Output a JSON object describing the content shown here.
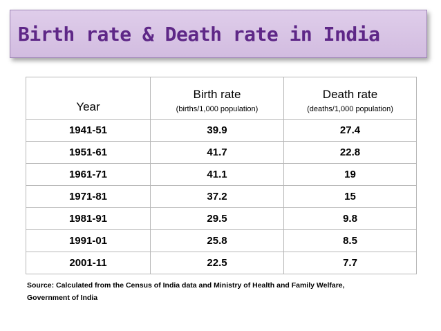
{
  "title": "Birth rate & Death rate in India",
  "table": {
    "headers": {
      "year": "Year",
      "birth_rate": "Birth rate",
      "birth_rate_unit": "(births/1,000 population)",
      "death_rate": "Death rate",
      "death_rate_unit": "(deaths/1,000 population)"
    },
    "rows": [
      {
        "year": "1941-51",
        "birth": "39.9",
        "death": "27.4"
      },
      {
        "year": "1951-61",
        "birth": "41.7",
        "death": "22.8"
      },
      {
        "year": "1961-71",
        "birth": "41.1",
        "death": "19"
      },
      {
        "year": "1971-81",
        "birth": "37.2",
        "death": "15"
      },
      {
        "year": "1981-91",
        "birth": "29.5",
        "death": "9.8"
      },
      {
        "year": "1991-01",
        "birth": "25.8",
        "death": "8.5"
      },
      {
        "year": "2001-11",
        "birth": "22.5",
        "death": "7.7"
      }
    ]
  },
  "source": {
    "line1": "Source: Calculated from the Census of India data and Ministry of Health and Family Welfare,",
    "line2": "Government of India"
  },
  "colors": {
    "title_text": "#5e2787",
    "title_bg": "#d2bce0",
    "grid": "#b7b7b7"
  }
}
